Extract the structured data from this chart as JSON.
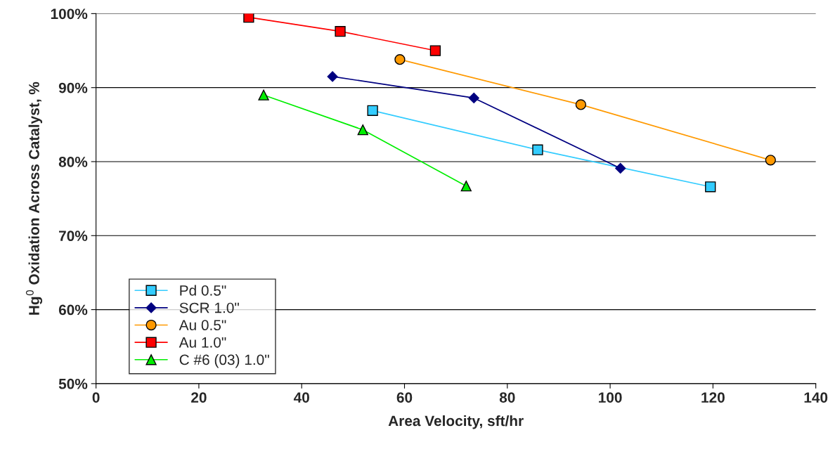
{
  "chart_data": {
    "type": "line",
    "xlabel": "Area Velocity, sft/hr",
    "ylabel": "Hg$^{0}$ Oxidation Across Catalyst, %",
    "xlim": [
      0,
      140
    ],
    "xticks": [
      0,
      20,
      40,
      60,
      80,
      100,
      120,
      140
    ],
    "ylim": [
      50,
      100
    ],
    "yticks": [
      {
        "value": 50,
        "label": "50%"
      },
      {
        "value": 60,
        "label": "60%"
      },
      {
        "value": 70,
        "label": "70%"
      },
      {
        "value": 80,
        "label": "80%"
      },
      {
        "value": 90,
        "label": "90%"
      },
      {
        "value": 100,
        "label": "100%"
      }
    ],
    "grid": "y",
    "legend": "bottom left",
    "series": [
      {
        "name": "Pd 0.5\"",
        "color": "#33ccff",
        "marker": "square",
        "x": [
          53.8,
          85.9,
          119.5
        ],
        "values": [
          86.9,
          81.6,
          76.6
        ]
      },
      {
        "name": "SCR 1.0\"",
        "color": "#000080",
        "marker": "diamond",
        "x": [
          46.0,
          73.5,
          102.0
        ],
        "values": [
          91.5,
          88.6,
          79.1
        ]
      },
      {
        "name": "Au 0.5\"",
        "color": "#ff9900",
        "marker": "circle",
        "x": [
          59.1,
          94.3,
          131.2
        ],
        "values": [
          93.8,
          87.7,
          80.2
        ]
      },
      {
        "name": "Au 1.0\"",
        "color": "#ff0000",
        "marker": "square",
        "x": [
          29.7,
          47.5,
          66.0
        ],
        "values": [
          99.5,
          97.6,
          95.0
        ]
      },
      {
        "name": "C #6 (03) 1.0\"",
        "color": "#00ee00",
        "marker": "triangle",
        "x": [
          32.6,
          51.9,
          72.0
        ],
        "values": [
          89.0,
          84.3,
          76.7
        ]
      }
    ]
  }
}
